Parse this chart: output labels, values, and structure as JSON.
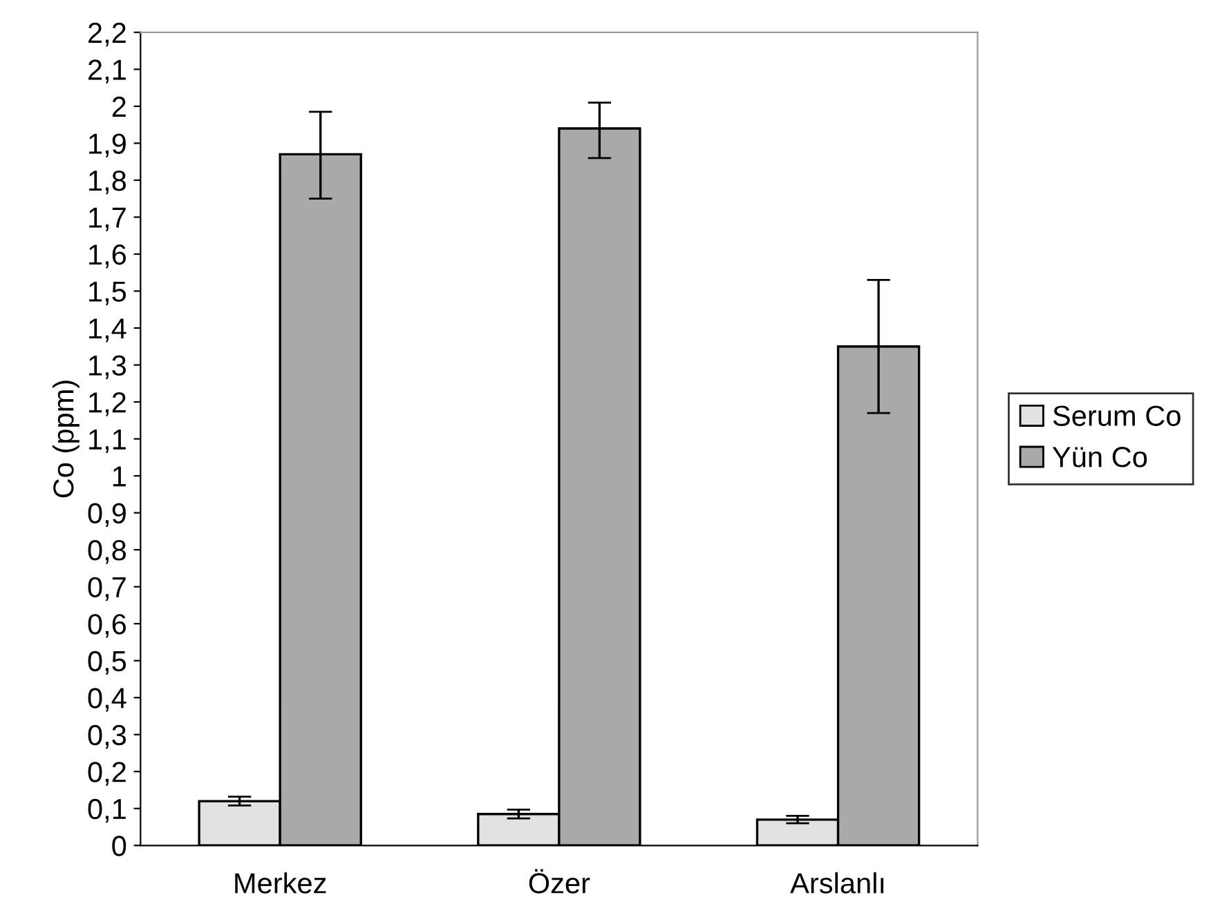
{
  "chart_data": {
    "type": "bar",
    "ylabel": "Co (ppm)",
    "categories": [
      "Merkez",
      "Özer",
      "Arslanlı"
    ],
    "series": [
      {
        "name": "Serum Co",
        "color": "#e2e2e2",
        "values": [
          0.12,
          0.085,
          0.07
        ],
        "errors": [
          0.012,
          0.012,
          0.01
        ]
      },
      {
        "name": "Yün Co",
        "color": "#a9a9a9",
        "values": [
          1.87,
          1.94,
          1.35
        ],
        "errors": [
          [
            1.75,
            1.985
          ],
          [
            1.86,
            2.01
          ],
          [
            1.17,
            1.53
          ]
        ]
      }
    ],
    "ylim": [
      0,
      2.2
    ],
    "yticks": [
      0,
      {
        "value": 0.1,
        "label": "0,1"
      },
      {
        "value": 0.2,
        "label": "0,2"
      },
      {
        "value": 0.3,
        "label": "0,3"
      },
      {
        "value": 0.4,
        "label": "0,4"
      },
      {
        "value": 0.5,
        "label": "0,5"
      },
      {
        "value": 0.6,
        "label": "0,6"
      },
      {
        "value": 0.7,
        "label": "0,7"
      },
      {
        "value": 0.8,
        "label": "0,8"
      },
      {
        "value": 0.9,
        "label": "0,9"
      },
      1,
      {
        "value": 1.1,
        "label": "1,1"
      },
      {
        "value": 1.2,
        "label": "1,2"
      },
      {
        "value": 1.3,
        "label": "1,3"
      },
      {
        "value": 1.4,
        "label": "1,4"
      },
      {
        "value": 1.5,
        "label": "1,5"
      },
      {
        "value": 1.6,
        "label": "1,6"
      },
      {
        "value": 1.7,
        "label": "1,7"
      },
      {
        "value": 1.8,
        "label": "1,8"
      },
      {
        "value": 1.9,
        "label": "1,9"
      },
      2,
      {
        "value": 2.1,
        "label": "2,1"
      },
      {
        "value": 2.2,
        "label": "2,2"
      }
    ],
    "legend": "right",
    "grid": false
  }
}
